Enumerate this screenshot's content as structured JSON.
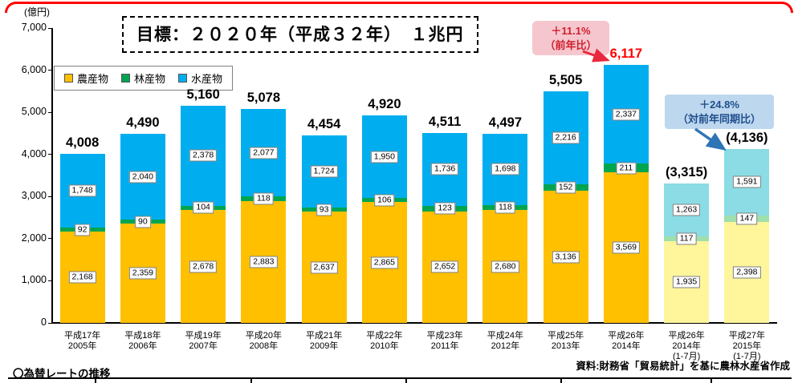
{
  "chart": {
    "title": "目標：２０２０年（平成３２年）　１兆円",
    "unit": "(億円)"
  },
  "legend": {
    "items": [
      {
        "label": "農産物",
        "color": "#FFC000"
      },
      {
        "label": "林産物",
        "color": "#00A550"
      },
      {
        "label": "水産物",
        "color": "#00AEEF"
      }
    ]
  },
  "annotations": {
    "yoy": {
      "line1": "＋11.1%",
      "line2": "（前年比）",
      "text_color": "#D0202E",
      "bg": "#F5C6CE",
      "arrow_color": "#E8283C"
    },
    "ytd": {
      "line1": "＋24.8%",
      "line2": "（対前年同期比）",
      "text_color": "#1F4E8C",
      "bg": "#BDD7EE",
      "arrow_color": "#2E75B6"
    }
  },
  "footer": {
    "source": "資料:財務省「貿易統計」を基に農林水産省作成",
    "note": "〇為替レートの推移"
  },
  "chart_data": {
    "type": "bar",
    "stacked": true,
    "title": "目標：２０２０年（平成３２年）　１兆円",
    "ylabel": "(億円)",
    "ylim": [
      0,
      7000
    ],
    "ytick_step": 1000,
    "grid": false,
    "legend_position": "top-left",
    "series_names": [
      "農産物",
      "林産物",
      "水産物"
    ],
    "colors": {
      "agri": "#FFC000",
      "forest": "#00A550",
      "fish": "#00AEEF"
    },
    "partial_colors": {
      "agri": "#FFF59B",
      "forest": "#9FDFAC",
      "fish": "#8BDCE4"
    },
    "bars": [
      {
        "cat": [
          "平成17年",
          "2005年"
        ],
        "agri": 2168,
        "forest": 92,
        "fish": 1748,
        "total": "4,008",
        "partial": false,
        "total_color": "#000000"
      },
      {
        "cat": [
          "平成18年",
          "2006年"
        ],
        "agri": 2359,
        "forest": 90,
        "fish": 2040,
        "total": "4,490",
        "partial": false,
        "total_color": "#000000"
      },
      {
        "cat": [
          "平成19年",
          "2007年"
        ],
        "agri": 2678,
        "forest": 104,
        "fish": 2378,
        "total": "5,160",
        "partial": false,
        "total_color": "#000000"
      },
      {
        "cat": [
          "平成20年",
          "2008年"
        ],
        "agri": 2883,
        "forest": 118,
        "fish": 2077,
        "total": "5,078",
        "partial": false,
        "total_color": "#000000"
      },
      {
        "cat": [
          "平成21年",
          "2009年"
        ],
        "agri": 2637,
        "forest": 93,
        "fish": 1724,
        "total": "4,454",
        "partial": false,
        "total_color": "#000000"
      },
      {
        "cat": [
          "平成22年",
          "2010年"
        ],
        "agri": 2865,
        "forest": 106,
        "fish": 1950,
        "total": "4,920",
        "partial": false,
        "total_color": "#000000"
      },
      {
        "cat": [
          "平成23年",
          "2011年"
        ],
        "agri": 2652,
        "forest": 123,
        "fish": 1736,
        "total": "4,511",
        "partial": false,
        "total_color": "#000000"
      },
      {
        "cat": [
          "平成24年",
          "2012年"
        ],
        "agri": 2680,
        "forest": 118,
        "fish": 1698,
        "total": "4,497",
        "partial": false,
        "total_color": "#000000"
      },
      {
        "cat": [
          "平成25年",
          "2013年"
        ],
        "agri": 3136,
        "forest": 152,
        "fish": 2216,
        "total": "5,505",
        "partial": false,
        "total_color": "#000000"
      },
      {
        "cat": [
          "平成26年",
          "2014年"
        ],
        "agri": 3569,
        "forest": 211,
        "fish": 2337,
        "total": "6,117",
        "partial": false,
        "total_color": "#FF0000"
      },
      {
        "cat": [
          "平成26年",
          "2014年",
          "(1-7月)"
        ],
        "agri": 1935,
        "forest": 117,
        "fish": 1263,
        "total": "(3,315)",
        "partial": true,
        "total_color": "#000000"
      },
      {
        "cat": [
          "平成27年",
          "2015年",
          "(1-7月)"
        ],
        "agri": 2398,
        "forest": 147,
        "fish": 1591,
        "total": "(4,136)",
        "partial": true,
        "total_color": "#000000"
      }
    ]
  }
}
